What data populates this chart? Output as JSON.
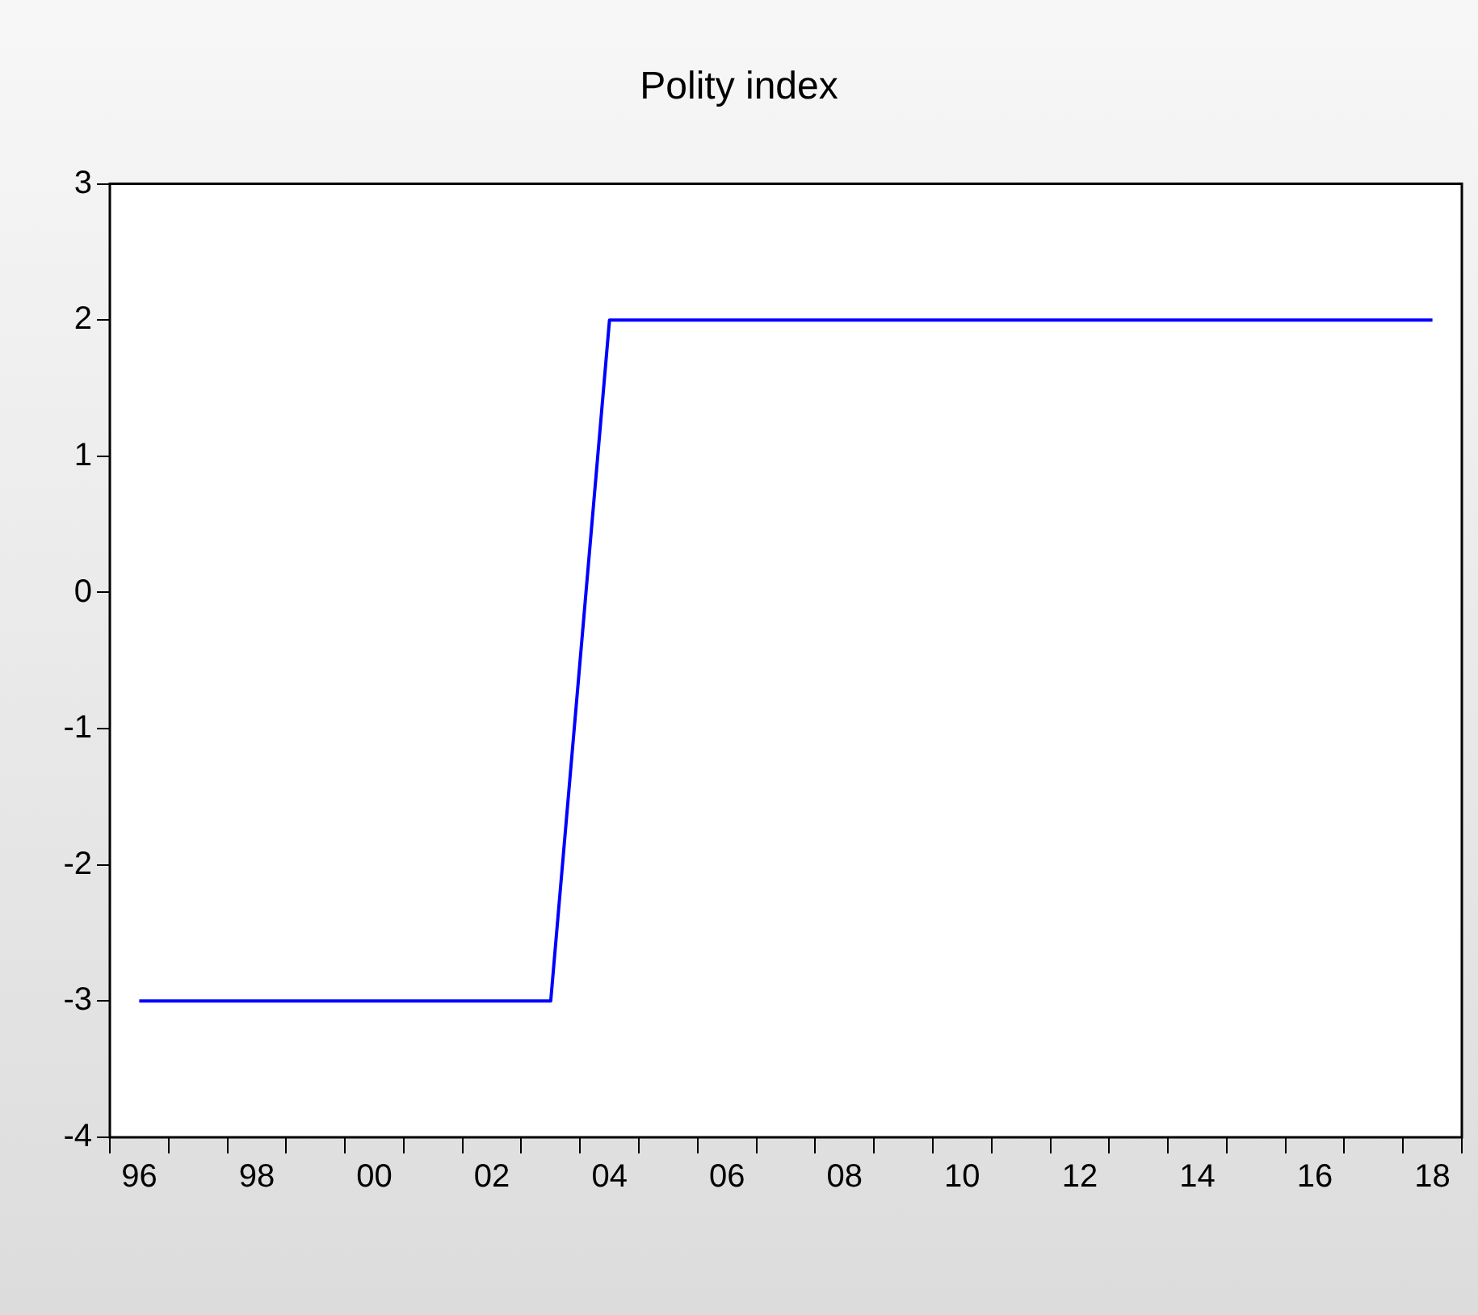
{
  "chart_data": {
    "type": "line",
    "title": "Polity index",
    "x": [
      1996,
      1997,
      1998,
      1999,
      2000,
      2001,
      2002,
      2003,
      2004,
      2005,
      2006,
      2007,
      2008,
      2009,
      2010,
      2011,
      2012,
      2013,
      2014,
      2015,
      2016,
      2017,
      2018
    ],
    "series": [
      {
        "color": "#0000ff",
        "values": [
          -3,
          -3,
          -3,
          -3,
          -3,
          -3,
          -3,
          -3,
          2,
          2,
          2,
          2,
          2,
          2,
          2,
          2,
          2,
          2,
          2,
          2,
          2,
          2,
          2
        ]
      }
    ],
    "xlim": [
      1995.5,
      2018.5
    ],
    "xticks": [
      {
        "value": 1995.5,
        "label": null
      },
      {
        "value": 1996,
        "label": "96"
      },
      {
        "value": 1996.5,
        "label": null
      },
      {
        "value": 1997.5,
        "label": null
      },
      {
        "value": 1998,
        "label": "98"
      },
      {
        "value": 1998.5,
        "label": null
      },
      {
        "value": 1999.5,
        "label": null
      },
      {
        "value": 2000,
        "label": "00"
      },
      {
        "value": 2000.5,
        "label": null
      },
      {
        "value": 2001.5,
        "label": null
      },
      {
        "value": 2002,
        "label": "02"
      },
      {
        "value": 2002.5,
        "label": null
      },
      {
        "value": 2003.5,
        "label": null
      },
      {
        "value": 2004,
        "label": "04"
      },
      {
        "value": 2004.5,
        "label": null
      },
      {
        "value": 2005.5,
        "label": null
      },
      {
        "value": 2006,
        "label": "06"
      },
      {
        "value": 2006.5,
        "label": null
      },
      {
        "value": 2007.5,
        "label": null
      },
      {
        "value": 2008,
        "label": "08"
      },
      {
        "value": 2008.5,
        "label": null
      },
      {
        "value": 2009.5,
        "label": null
      },
      {
        "value": 2010,
        "label": "10"
      },
      {
        "value": 2010.5,
        "label": null
      },
      {
        "value": 2011.5,
        "label": null
      },
      {
        "value": 2012,
        "label": "12"
      },
      {
        "value": 2012.5,
        "label": null
      },
      {
        "value": 2013.5,
        "label": null
      },
      {
        "value": 2014,
        "label": "14"
      },
      {
        "value": 2014.5,
        "label": null
      },
      {
        "value": 2015.5,
        "label": null
      },
      {
        "value": 2016,
        "label": "16"
      },
      {
        "value": 2016.5,
        "label": null
      },
      {
        "value": 2017.5,
        "label": null
      },
      {
        "value": 2018,
        "label": "18"
      },
      {
        "value": 2018.5,
        "label": null
      }
    ],
    "ylim": [
      -4,
      3
    ],
    "yticks": [
      -4,
      -3,
      -2,
      -1,
      0,
      1,
      2,
      3
    ],
    "grid": false,
    "legend": false,
    "marker": "none",
    "line_style": "solid"
  }
}
